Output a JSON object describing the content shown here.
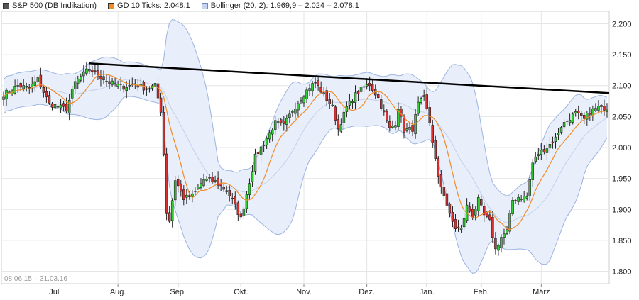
{
  "legend": {
    "main_label": "S&P 500 (DB Indikation)",
    "ma_label": "GD 10 Ticks: 2.048,1",
    "bb_label": "Bollinger (20, 2): 1.969,9 – 2.024 – 2.078,1"
  },
  "date_range": "08.06.15 – 31.03.16",
  "colors": {
    "up": "#33cc33",
    "down": "#d93030",
    "ma": "#f08c28",
    "band_fill": "#e8eefa",
    "band_line": "#9cb4e0",
    "mid_line": "#c2d0ea",
    "trend": "#000000",
    "grid": "#e6e6e6"
  },
  "chart_data": {
    "type": "candlestick",
    "x_ticks": [
      "Juli",
      "Aug.",
      "Sep.",
      "Okt.",
      "Nov.",
      "Dez.",
      "Jan.",
      "Feb.",
      "März"
    ],
    "y_ticks": [
      "2.200",
      "2.150",
      "2.100",
      "2.050",
      "2.000",
      "1.950",
      "1.900",
      "1.850",
      "1.800"
    ],
    "ylim": [
      1780,
      2220
    ],
    "n_days": 212,
    "tick_day_index": [
      18,
      40,
      61,
      83,
      105,
      127,
      148,
      167,
      188
    ],
    "close_anchors": [
      [
        0,
        2086
      ],
      [
        5,
        2100
      ],
      [
        9,
        2096
      ],
      [
        12,
        2110
      ],
      [
        16,
        2070
      ],
      [
        18,
        2068
      ],
      [
        22,
        2062
      ],
      [
        25,
        2105
      ],
      [
        30,
        2128
      ],
      [
        33,
        2117
      ],
      [
        37,
        2105
      ],
      [
        42,
        2098
      ],
      [
        46,
        2102
      ],
      [
        50,
        2095
      ],
      [
        53,
        2100
      ],
      [
        55,
        2060
      ],
      [
        56,
        1990
      ],
      [
        57,
        1895
      ],
      [
        58,
        1882
      ],
      [
        60,
        1948
      ],
      [
        63,
        1918
      ],
      [
        66,
        1922
      ],
      [
        70,
        1948
      ],
      [
        74,
        1945
      ],
      [
        78,
        1930
      ],
      [
        80,
        1915
      ],
      [
        83,
        1885
      ],
      [
        85,
        1925
      ],
      [
        88,
        1985
      ],
      [
        92,
        2015
      ],
      [
        95,
        2040
      ],
      [
        98,
        2035
      ],
      [
        101,
        2060
      ],
      [
        104,
        2080
      ],
      [
        107,
        2098
      ],
      [
        109,
        2105
      ],
      [
        112,
        2085
      ],
      [
        115,
        2065
      ],
      [
        117,
        2030
      ],
      [
        120,
        2065
      ],
      [
        123,
        2085
      ],
      [
        126,
        2098
      ],
      [
        128,
        2102
      ],
      [
        131,
        2080
      ],
      [
        133,
        2055
      ],
      [
        135,
        2030
      ],
      [
        137,
        2040
      ],
      [
        138,
        2065
      ],
      [
        140,
        2028
      ],
      [
        143,
        2030
      ],
      [
        145,
        2070
      ],
      [
        147,
        2080
      ],
      [
        149,
        2040
      ],
      [
        150,
        2010
      ],
      [
        152,
        1950
      ],
      [
        154,
        1925
      ],
      [
        156,
        1890
      ],
      [
        158,
        1870
      ],
      [
        160,
        1868
      ],
      [
        162,
        1905
      ],
      [
        164,
        1890
      ],
      [
        166,
        1915
      ],
      [
        168,
        1890
      ],
      [
        170,
        1880
      ],
      [
        172,
        1835
      ],
      [
        174,
        1855
      ],
      [
        176,
        1865
      ],
      [
        178,
        1915
      ],
      [
        180,
        1920
      ],
      [
        183,
        1920
      ],
      [
        185,
        1975
      ],
      [
        187,
        1990
      ],
      [
        190,
        2000
      ],
      [
        193,
        2015
      ],
      [
        195,
        2035
      ],
      [
        198,
        2048
      ],
      [
        200,
        2055
      ],
      [
        203,
        2045
      ],
      [
        205,
        2058
      ],
      [
        208,
        2065
      ],
      [
        211,
        2064
      ]
    ],
    "trend_line": [
      [
        30,
        2136
      ],
      [
        211,
        2088
      ]
    ],
    "bb_period": 20,
    "bb_mult": 2,
    "ma_period": 10
  }
}
